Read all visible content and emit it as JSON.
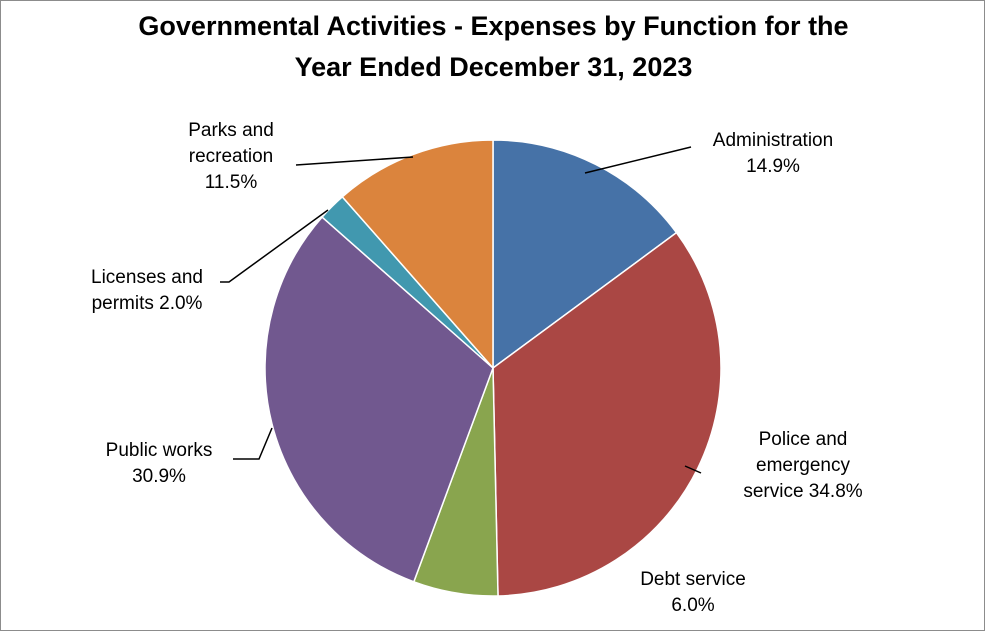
{
  "chart_data": {
    "type": "pie",
    "title_lines": [
      "Governmental Activities - Expenses by Function for the",
      "Year Ended December 31, 2023"
    ],
    "slices": [
      {
        "label_lines": [
          "Administration",
          "14.9%"
        ],
        "value": 14.9,
        "color": "#4672a7"
      },
      {
        "label_lines": [
          "Police and",
          "emergency",
          "service 34.8%"
        ],
        "value": 34.8,
        "color": "#aa4744"
      },
      {
        "label_lines": [
          "Debt service",
          "6.0%"
        ],
        "value": 6.0,
        "color": "#89a54e"
      },
      {
        "label_lines": [
          "Public works",
          "30.9%"
        ],
        "value": 30.9,
        "color": "#71588f"
      },
      {
        "label_lines": [
          "Licenses and",
          "permits 2.0%"
        ],
        "value": 2.0,
        "color": "#4198af"
      },
      {
        "label_lines": [
          "Parks and",
          "recreation",
          "11.5%"
        ],
        "value": 11.5,
        "color": "#db843d"
      }
    ]
  }
}
